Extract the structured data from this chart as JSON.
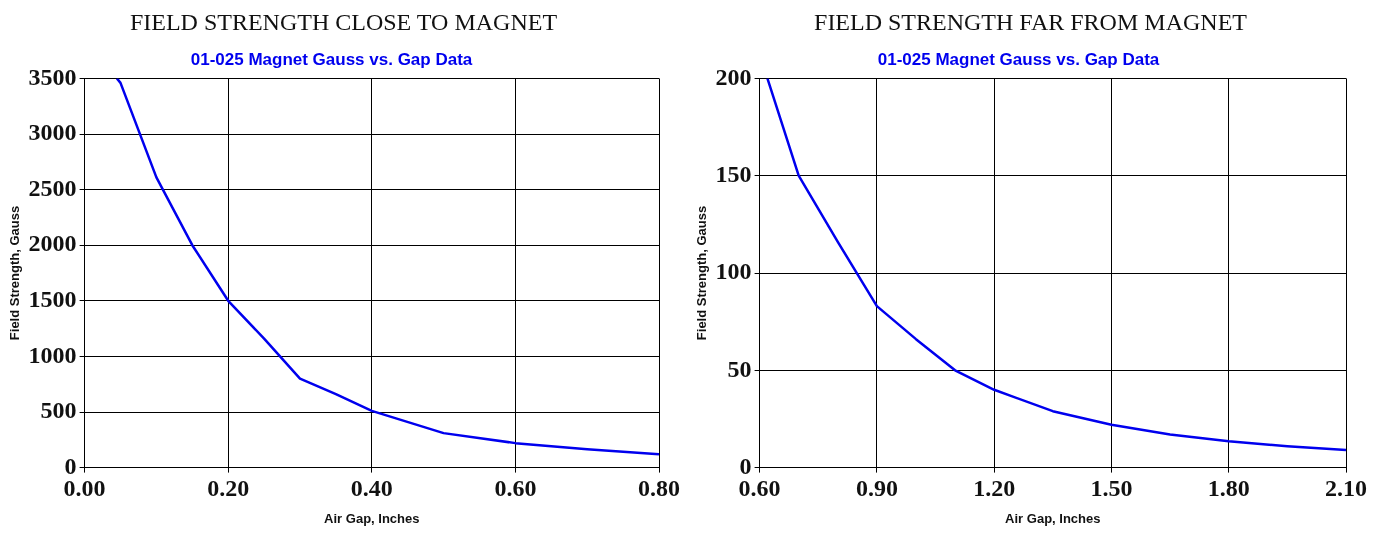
{
  "chart_data": [
    {
      "type": "line",
      "title": "FIELD STRENGTH CLOSE TO MAGNET",
      "subtitle": "01-025 Magnet Gauss vs. Gap Data",
      "xlabel": "Air Gap, Inches",
      "ylabel": "Field Strength, Gauss",
      "series": [
        {
          "color": "#0000ee",
          "x": [
            0.045,
            0.05,
            0.1,
            0.15,
            0.2,
            0.25,
            0.3,
            0.35,
            0.4,
            0.5,
            0.6,
            0.7,
            0.8
          ],
          "values": [
            3500,
            3460,
            2610,
            2000,
            1500,
            1160,
            800,
            660,
            510,
            310,
            220,
            165,
            120
          ]
        }
      ],
      "xlim": [
        0,
        0.8
      ],
      "xticks": [
        {
          "value": 0,
          "label": "0.00"
        },
        {
          "value": 0.2,
          "label": "0.20"
        },
        {
          "value": 0.4,
          "label": "0.40"
        },
        {
          "value": 0.6,
          "label": "0.60"
        },
        {
          "value": 0.8,
          "label": "0.80"
        }
      ],
      "ylim": [
        0,
        3500
      ],
      "yticks": [
        0,
        500,
        1000,
        1500,
        2000,
        2500,
        3000,
        3500
      ],
      "grid": true,
      "legend": false,
      "marker": "none",
      "line_style": "solid"
    },
    {
      "type": "line",
      "title": "FIELD STRENGTH FAR FROM MAGNET",
      "subtitle": "01-025 Magnet Gauss vs. Gap Data",
      "xlabel": "Air Gap, Inches",
      "ylabel": "Field Strength, Gauss",
      "series": [
        {
          "color": "#0000ee",
          "x": [
            0.62,
            0.7,
            0.8,
            0.9,
            1.0,
            1.1,
            1.2,
            1.35,
            1.5,
            1.65,
            1.8,
            1.95,
            2.1
          ],
          "values": [
            200,
            150,
            116,
            83,
            66,
            50,
            40,
            29,
            22,
            17,
            13.5,
            11,
            9
          ]
        }
      ],
      "xlim": [
        0.6,
        2.1
      ],
      "xticks": [
        {
          "value": 0.6,
          "label": "0.60"
        },
        {
          "value": 0.9,
          "label": "0.90"
        },
        {
          "value": 1.2,
          "label": "1.20"
        },
        {
          "value": 1.5,
          "label": "1.50"
        },
        {
          "value": 1.8,
          "label": "1.80"
        },
        {
          "value": 2.1,
          "label": "2.10"
        }
      ],
      "ylim": [
        0,
        200
      ],
      "yticks": [
        0,
        50,
        100,
        150,
        200
      ],
      "grid": true,
      "legend": false,
      "marker": "none",
      "line_style": "solid"
    }
  ]
}
